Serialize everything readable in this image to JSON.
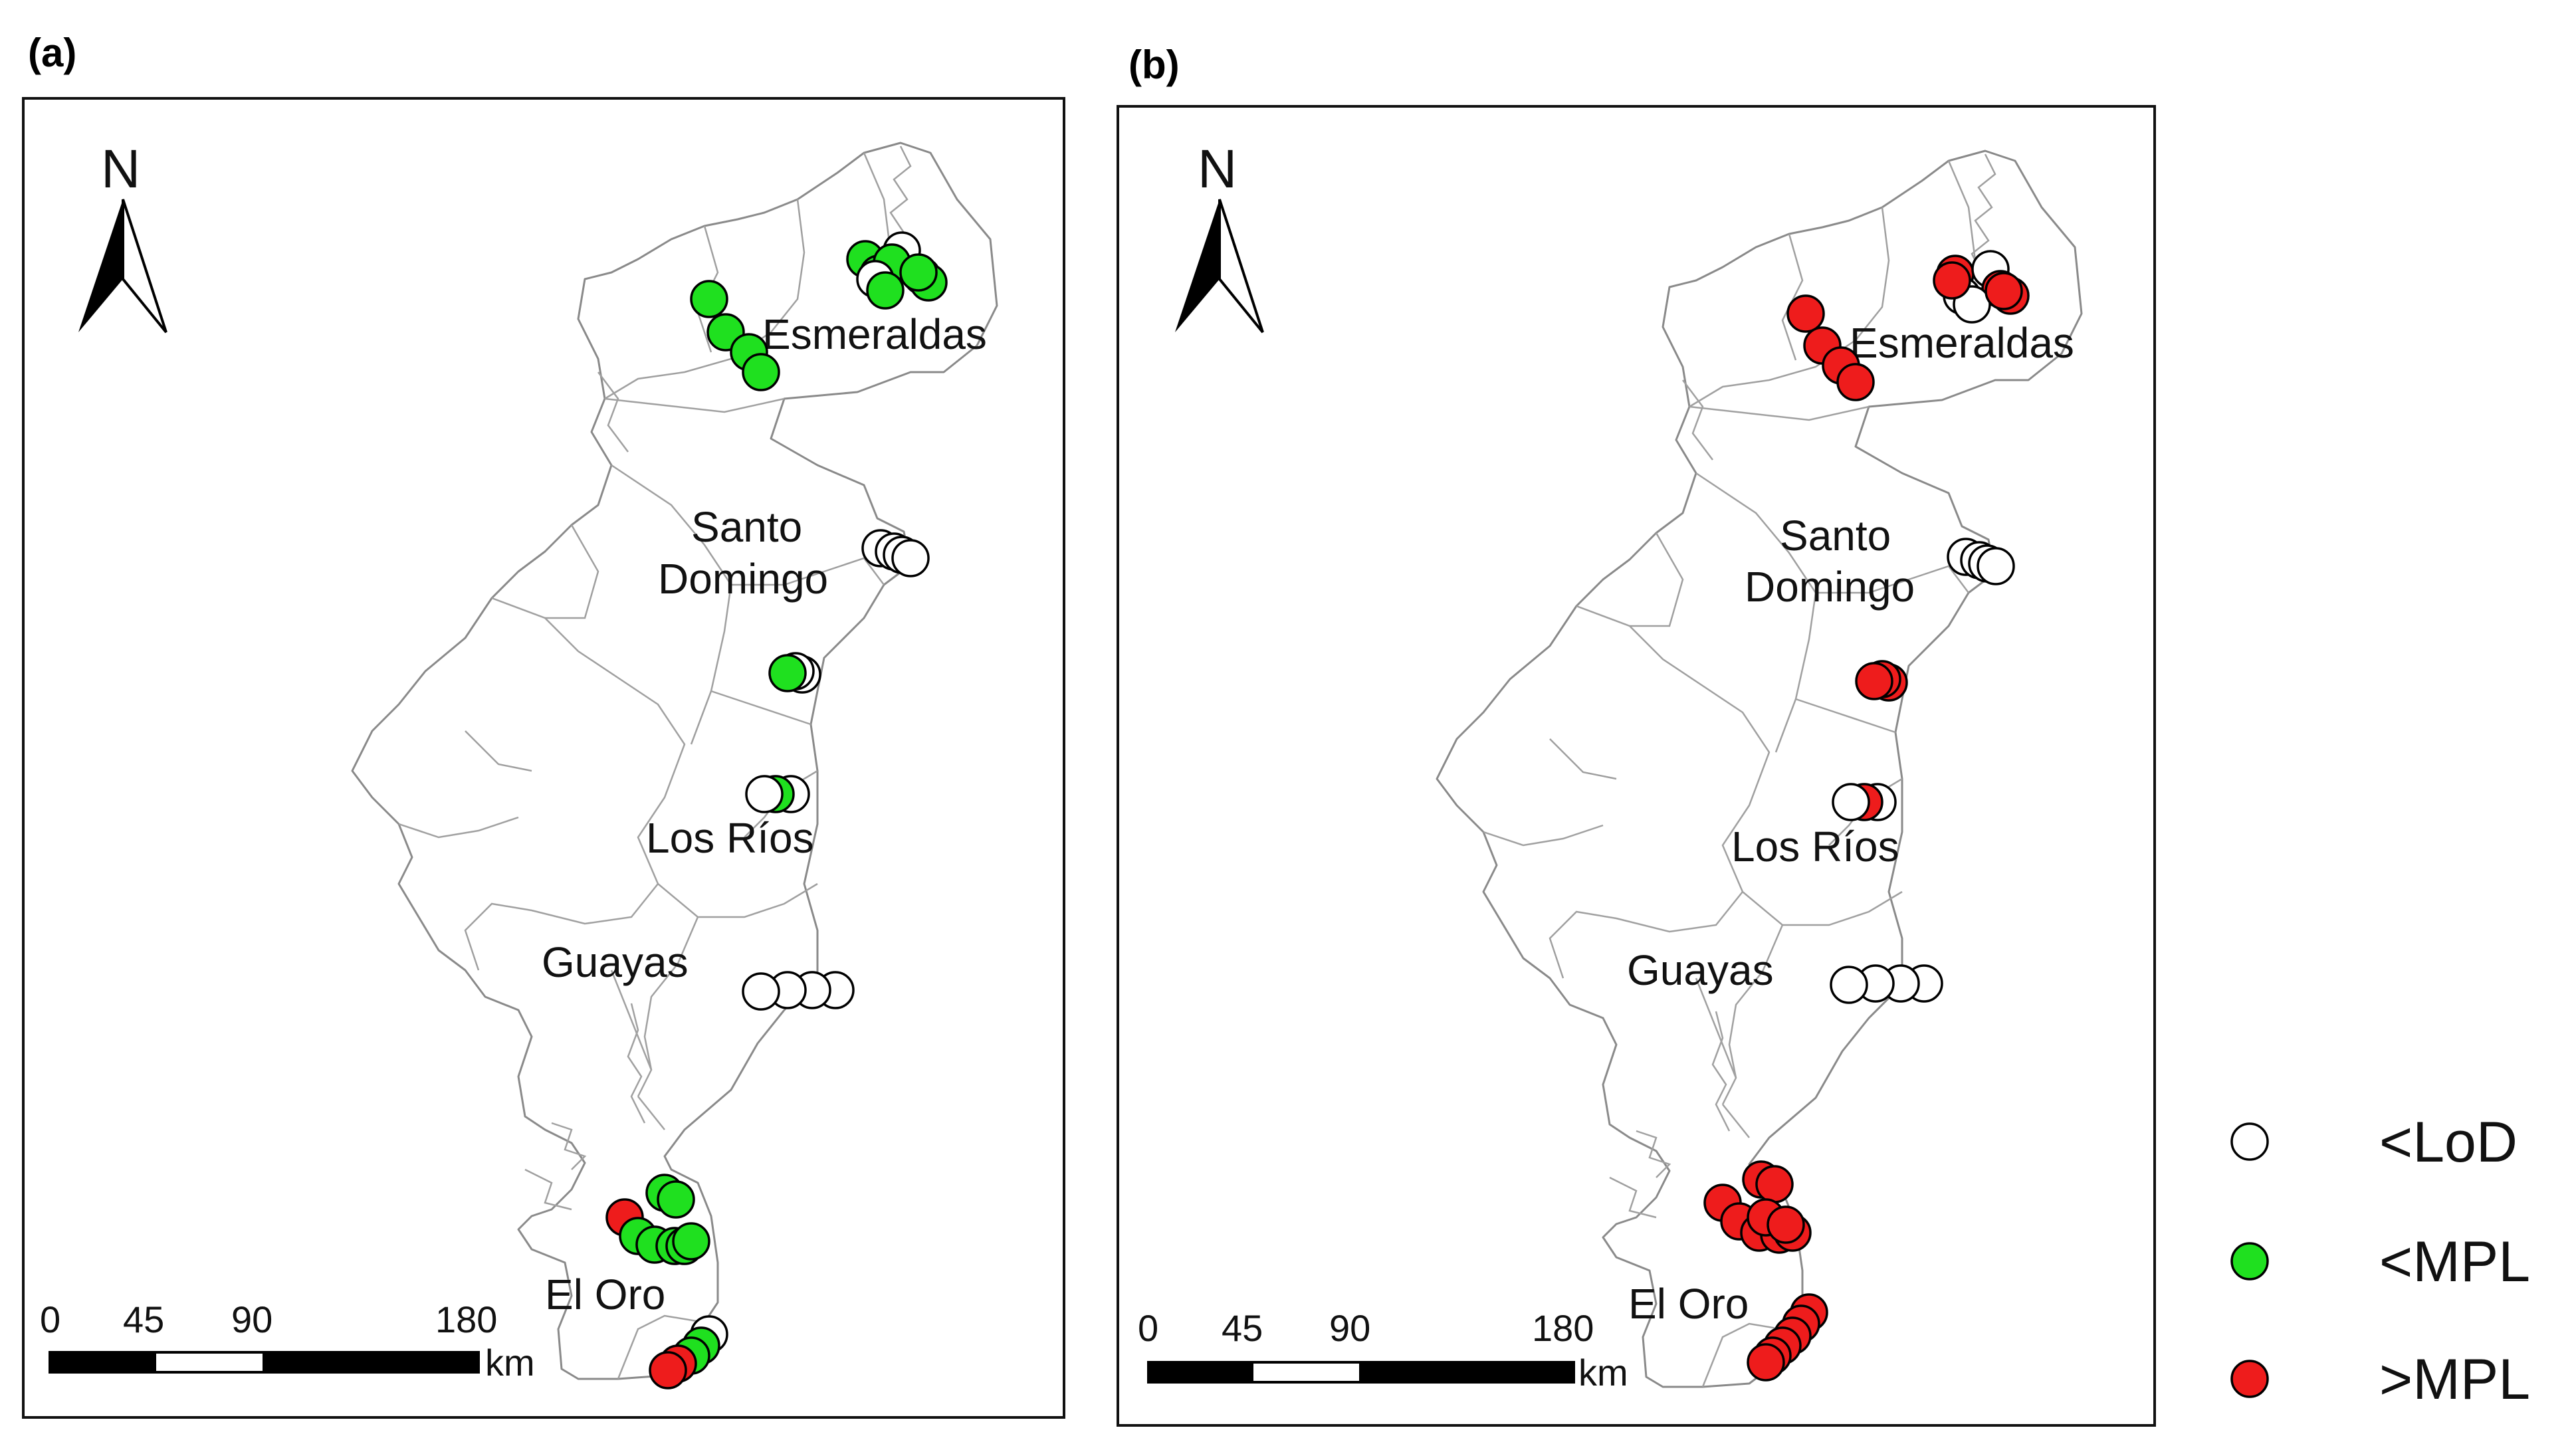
{
  "panels": [
    {
      "label": "(a)",
      "north_label": "N",
      "places": [
        "Esmeraldas",
        "Santo",
        "Domingo",
        "Los Ríos",
        "Guayas",
        "El Oro"
      ],
      "scale": {
        "ticks": [
          "0",
          "45",
          "90",
          "180"
        ],
        "unit": "km"
      },
      "sites": [
        {
          "province": "Esmeraldas",
          "status": [
            "green",
            "green",
            "green",
            "green",
            "white",
            "green",
            "white",
            "green",
            "green"
          ]
        },
        {
          "province": "Esmeraldas (west)",
          "status": [
            "green",
            "green",
            "green",
            "green"
          ]
        },
        {
          "province": "Santo Domingo",
          "status": [
            "white",
            "white",
            "white",
            "white"
          ]
        },
        {
          "province": "Santo Domingo (south)",
          "status": [
            "white",
            "white",
            "green"
          ]
        },
        {
          "province": "Los Ríos",
          "status": [
            "white",
            "green",
            "white"
          ]
        },
        {
          "province": "Guayas",
          "status": [
            "white",
            "white",
            "white",
            "white"
          ]
        },
        {
          "province": "El Oro (north)",
          "status": [
            "red",
            "green",
            "green",
            "green",
            "green",
            "green",
            "green",
            "green"
          ]
        },
        {
          "province": "El Oro (south)",
          "status": [
            "white",
            "green",
            "green",
            "red",
            "red"
          ]
        }
      ]
    },
    {
      "label": "(b)",
      "north_label": "N",
      "places": [
        "Esmeraldas",
        "Santo",
        "Domingo",
        "Los Ríos",
        "Guayas",
        "El Oro"
      ],
      "scale": {
        "ticks": [
          "0",
          "45",
          "90",
          "180"
        ],
        "unit": "km"
      },
      "sites": [
        {
          "province": "Esmeraldas",
          "status": [
            "red",
            "white",
            "red",
            "red",
            "white",
            "white",
            "red",
            "red"
          ]
        },
        {
          "province": "Esmeraldas (west)",
          "status": [
            "red",
            "red",
            "red",
            "red"
          ]
        },
        {
          "province": "Santo Domingo",
          "status": [
            "white",
            "white",
            "white",
            "white"
          ]
        },
        {
          "province": "Santo Domingo (south)",
          "status": [
            "red",
            "red",
            "red"
          ]
        },
        {
          "province": "Los Ríos",
          "status": [
            "white",
            "red",
            "white"
          ]
        },
        {
          "province": "Guayas",
          "status": [
            "white",
            "white",
            "white",
            "white"
          ]
        },
        {
          "province": "El Oro (north)",
          "status": [
            "red",
            "red",
            "red",
            "red",
            "red",
            "red",
            "red",
            "red",
            "red"
          ]
        },
        {
          "province": "El Oro (south)",
          "status": [
            "red",
            "red",
            "red",
            "red",
            "red",
            "red"
          ]
        }
      ]
    }
  ],
  "legend": [
    {
      "label": "<LoD",
      "color": "#ffffff"
    },
    {
      "label": "<MPL",
      "color": "#1fe01f"
    },
    {
      "label": ">MPL",
      "color": "#ee1c1c"
    }
  ],
  "colors": {
    "white": "#ffffff",
    "green": "#1fe01f",
    "red": "#ee1c1c"
  }
}
